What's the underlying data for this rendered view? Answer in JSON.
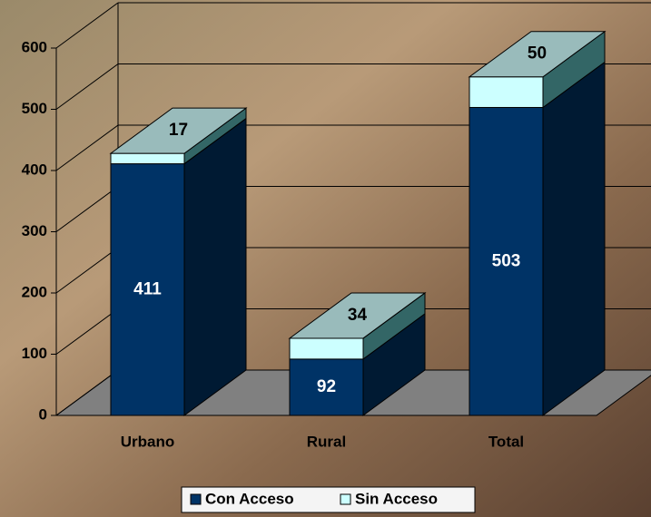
{
  "chart_data": {
    "type": "bar3d_stacked",
    "categories": [
      "Urbano",
      "Rural",
      "Total"
    ],
    "series": [
      {
        "name": "Con Acceso",
        "color": "#003366",
        "values": [
          411,
          92,
          503
        ]
      },
      {
        "name": "Sin Acceso",
        "color": "#ccffff",
        "values": [
          17,
          34,
          50
        ]
      }
    ],
    "ylim": [
      0,
      600
    ],
    "yticks": [
      0,
      100,
      200,
      300,
      400,
      500,
      600
    ],
    "grid": true,
    "legend": "bottom"
  }
}
